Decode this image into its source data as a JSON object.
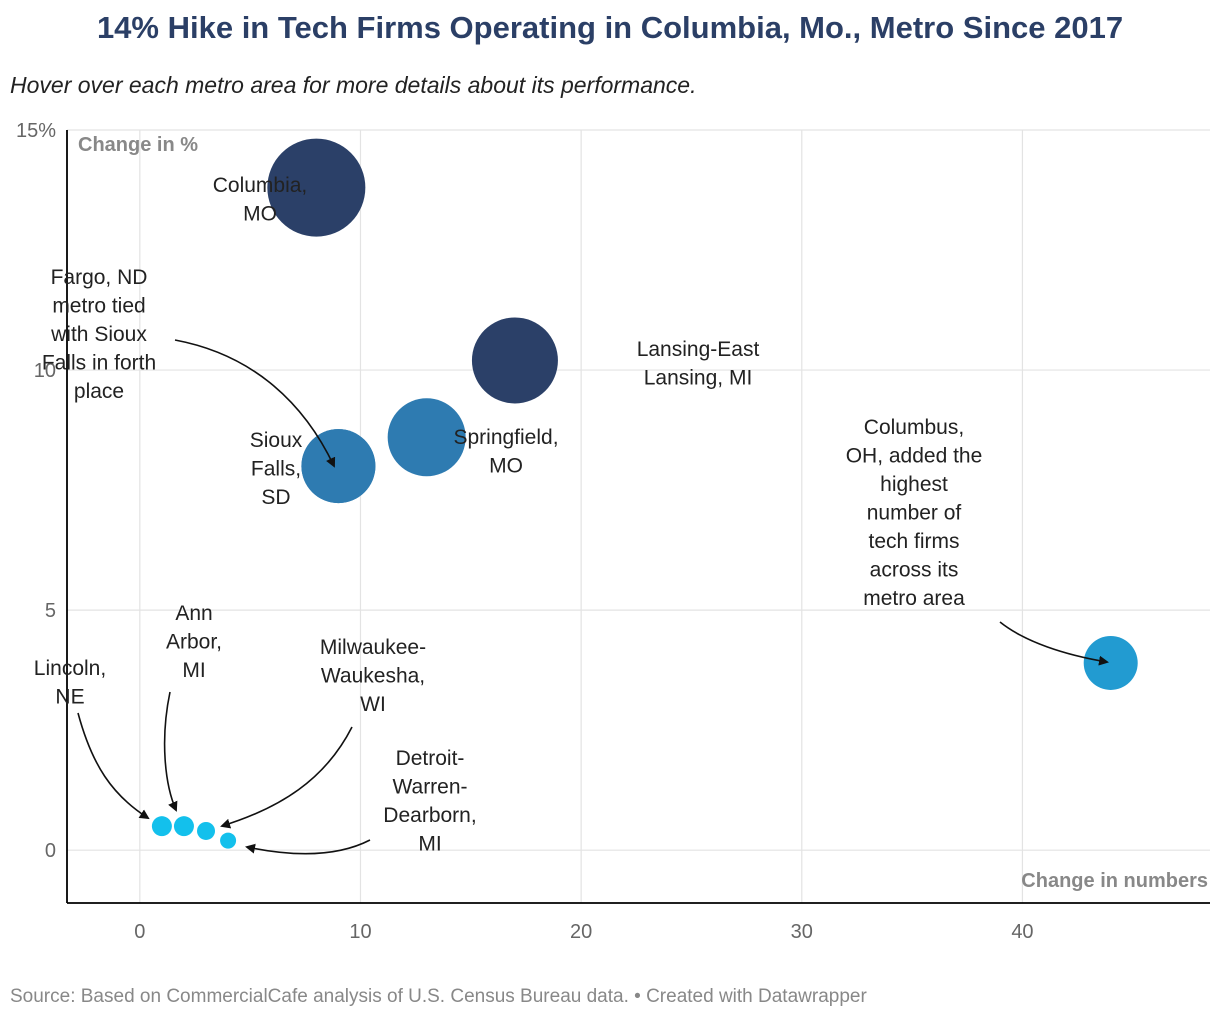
{
  "header": {
    "title": "14% Hike in Tech Firms Operating in Columbia, Mo., Metro Since 2017",
    "subtitle": "Hover over each metro area for more details about its performance."
  },
  "footer": {
    "source": "Source: Based on CommercialCafe analysis of U.S. Census Bureau data. • Created with Datawrapper"
  },
  "colors": {
    "dark_navy": "#2b4068",
    "steel_blue": "#2e7bb1",
    "mid_blue": "#229bd1",
    "light_cyan": "#13c0ec",
    "gridline": "#e3e3e3",
    "axis": "#000000"
  },
  "chart_data": {
    "type": "scatter",
    "xlabel": "Change in numbers",
    "ylabel": "Change in %",
    "xlim": [
      -3.3,
      48.5
    ],
    "ylim": [
      -1.1,
      15
    ],
    "x_ticks": [
      {
        "value": 0,
        "label": "0"
      },
      {
        "value": 10,
        "label": "10"
      },
      {
        "value": 20,
        "label": "20"
      },
      {
        "value": 30,
        "label": "30"
      },
      {
        "value": 40,
        "label": "40"
      }
    ],
    "y_ticks": [
      {
        "value": 0,
        "label": "0"
      },
      {
        "value": 5,
        "label": "5"
      },
      {
        "value": 10,
        "label": "10"
      },
      {
        "value": 15,
        "label": "15%"
      }
    ],
    "grid": true,
    "points": [
      {
        "name": "Columbia, MO",
        "x": 8,
        "y": 13.8,
        "size": 8,
        "color": "#2b4068"
      },
      {
        "name": "Lansing-East Lansing, MI",
        "x": 17,
        "y": 10.2,
        "size": 17,
        "color": "#2b4068"
      },
      {
        "name": "Springfield, MO",
        "x": 13,
        "y": 8.6,
        "size": 13,
        "color": "#2e7bb1"
      },
      {
        "name": "Sioux Falls, SD",
        "x": 9,
        "y": 8.0,
        "size": 9,
        "color": "#2e7bb1"
      },
      {
        "name": "Fargo, ND",
        "x": 9,
        "y": 8.0,
        "size": 9,
        "color": "#2e7bb1"
      },
      {
        "name": "Columbus, OH",
        "x": 44,
        "y": 3.9,
        "size": 44,
        "color": "#229bd1"
      },
      {
        "name": "Lincoln, NE",
        "x": 1,
        "y": 0.5,
        "size": 1,
        "color": "#13c0ec"
      },
      {
        "name": "Ann Arbor, MI",
        "x": 2,
        "y": 0.5,
        "size": 2,
        "color": "#13c0ec"
      },
      {
        "name": "Milwaukee-Waukesha, WI",
        "x": 3,
        "y": 0.4,
        "size": 3,
        "color": "#13c0ec"
      },
      {
        "name": "Detroit-Warren-Dearborn, MI",
        "x": 4,
        "y": 0.2,
        "size": 4,
        "color": "#13c0ec"
      }
    ],
    "labels": [
      {
        "id": "columbia",
        "lines": [
          "Columbia,",
          "MO"
        ]
      },
      {
        "id": "lansing",
        "lines": [
          "Lansing-East",
          "Lansing, MI"
        ]
      },
      {
        "id": "springfield",
        "lines": [
          "Springfield,",
          "MO"
        ]
      },
      {
        "id": "sioux",
        "lines": [
          "Sioux",
          "Falls,",
          "SD"
        ]
      },
      {
        "id": "fargo",
        "lines": [
          "Fargo, ND",
          "metro tied",
          "with Sioux",
          "Falls in forth",
          "place"
        ]
      },
      {
        "id": "columbus",
        "lines": [
          "Columbus,",
          "OH, added the",
          "highest",
          "number of",
          "tech firms",
          "across its",
          "metro area"
        ]
      },
      {
        "id": "lincoln",
        "lines": [
          "Lincoln,",
          "NE"
        ]
      },
      {
        "id": "annarbor",
        "lines": [
          "Ann",
          "Arbor,",
          "MI"
        ]
      },
      {
        "id": "milwaukee",
        "lines": [
          "Milwaukee-",
          "Waukesha,",
          "WI"
        ]
      },
      {
        "id": "detroit",
        "lines": [
          "Detroit-",
          "Warren-",
          "Dearborn,",
          "MI"
        ]
      }
    ]
  }
}
